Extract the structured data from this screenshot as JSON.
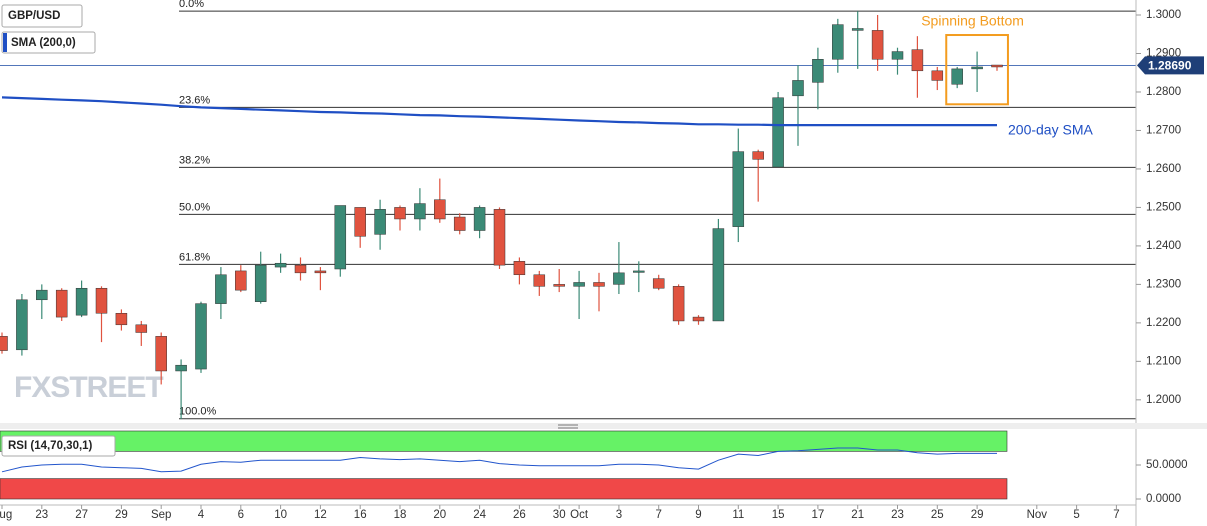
{
  "chart_data": {
    "type": "candlestick",
    "watermark": "FXSTREET",
    "categories": [
      "Aug",
      null,
      "23",
      null,
      "27",
      null,
      "29",
      null,
      "Sep",
      null,
      "4",
      null,
      "6",
      null,
      "10",
      null,
      "12",
      null,
      "16",
      null,
      "18",
      null,
      "20",
      null,
      "24",
      null,
      "26",
      null,
      "30",
      "Oct",
      null,
      "3",
      null,
      "7",
      null,
      "9",
      null,
      "11",
      null,
      "15",
      null,
      "17",
      null,
      "21",
      null,
      "23",
      null,
      "25",
      null,
      "29",
      null,
      null,
      "Nov",
      null,
      "5",
      null,
      "7"
    ],
    "ylim": [
      1.1945,
      1.3039
    ],
    "yticks": [
      {
        "value": 1.2,
        "label": "1.2000"
      },
      {
        "value": 1.21,
        "label": "1.2100"
      },
      {
        "value": 1.22,
        "label": "1.2200"
      },
      {
        "value": 1.23,
        "label": "1.2300"
      },
      {
        "value": 1.24,
        "label": "1.2400"
      },
      {
        "value": 1.25,
        "label": "1.2500"
      },
      {
        "value": 1.26,
        "label": "1.2600"
      },
      {
        "value": 1.27,
        "label": "1.2700"
      },
      {
        "value": 1.28,
        "label": "1.2800"
      },
      {
        "value": 1.29,
        "label": "1.2900"
      },
      {
        "value": 1.3,
        "label": "1.3000"
      }
    ],
    "up_color": "#3b8a76",
    "down_color": "#e0533f",
    "current_price": {
      "value": 1.2869,
      "label": "1.28690",
      "color": "#1f3f78"
    },
    "series": [
      {
        "name": "GBP/USD",
        "open": [
          1.2165,
          1.213,
          1.226,
          1.2285,
          1.222,
          1.229,
          1.2225,
          1.2195,
          1.2165,
          1.2075,
          1.208,
          1.225,
          1.2335,
          1.2255,
          1.2345,
          1.235,
          1.2335,
          1.234,
          1.25,
          1.243,
          1.25,
          1.247,
          1.252,
          1.2475,
          1.244,
          1.2495,
          1.236,
          1.2325,
          1.23,
          1.2295,
          1.2305,
          1.23,
          1.2333,
          1.2315,
          1.2295,
          1.2215,
          1.2205,
          1.245,
          1.2645,
          1.2605,
          1.279,
          1.2825,
          1.2885,
          1.296,
          1.296,
          1.2885,
          1.291,
          1.2855,
          1.282,
          1.286,
          1.287,
          null,
          null,
          null,
          null,
          null,
          null
        ],
        "high": [
          1.2175,
          1.2275,
          1.23,
          1.229,
          1.231,
          1.2295,
          1.2235,
          1.2205,
          1.2175,
          1.2105,
          1.2255,
          1.2345,
          1.235,
          1.2385,
          1.238,
          1.237,
          1.2345,
          1.2505,
          1.25,
          1.252,
          1.2505,
          1.255,
          1.2575,
          1.2485,
          1.2505,
          1.25,
          1.237,
          1.2335,
          1.234,
          1.2335,
          1.233,
          1.241,
          1.236,
          1.2325,
          1.23,
          1.222,
          1.247,
          1.2705,
          1.265,
          1.28,
          1.287,
          1.2915,
          1.299,
          1.301,
          1.3,
          1.2915,
          1.2945,
          1.2865,
          1.2865,
          1.2905,
          1.287,
          null,
          null,
          null,
          null,
          null,
          null
        ],
        "low": [
          1.212,
          1.2115,
          1.221,
          1.2205,
          1.2215,
          1.215,
          1.218,
          1.214,
          1.204,
          1.195,
          1.207,
          1.221,
          1.228,
          1.225,
          1.233,
          1.231,
          1.2285,
          1.232,
          1.2395,
          1.239,
          1.244,
          1.244,
          1.246,
          1.243,
          1.242,
          1.234,
          1.23,
          1.227,
          1.228,
          1.221,
          1.223,
          1.2275,
          1.228,
          1.2285,
          1.2195,
          1.2195,
          1.2205,
          1.241,
          1.2515,
          1.2605,
          1.266,
          1.2755,
          1.285,
          1.286,
          1.2855,
          1.2845,
          1.2785,
          1.2805,
          1.281,
          1.28,
          1.2855,
          null,
          null,
          null,
          null,
          null,
          null
        ],
        "close": [
          1.2128,
          1.226,
          1.2285,
          1.2215,
          1.229,
          1.2225,
          1.2195,
          1.2175,
          1.2075,
          1.209,
          1.225,
          1.2325,
          1.2285,
          1.235,
          1.2355,
          1.233,
          1.233,
          1.2505,
          1.2425,
          1.2495,
          1.247,
          1.251,
          1.247,
          1.244,
          1.25,
          1.235,
          1.2325,
          1.2295,
          1.2295,
          1.2305,
          1.2295,
          1.233,
          1.2335,
          1.229,
          1.2205,
          1.2205,
          1.2445,
          1.2645,
          1.2625,
          1.2785,
          1.283,
          1.2885,
          1.2975,
          1.2965,
          1.2885,
          1.2905,
          1.2855,
          1.283,
          1.286,
          1.2865,
          1.2865,
          null,
          null,
          null,
          null,
          null,
          null
        ]
      },
      {
        "name": "SMA (200,0)",
        "color": "#1f4fc4",
        "values": [
          1.2786,
          1.2784,
          1.2782,
          1.278,
          1.2778,
          1.2776,
          1.2773,
          1.277,
          1.2767,
          1.2763,
          1.276,
          1.2758,
          1.2756,
          1.2754,
          1.2752,
          1.275,
          1.2748,
          1.2747,
          1.2745,
          1.2744,
          1.2742,
          1.274,
          1.2739,
          1.2737,
          1.2736,
          1.2734,
          1.2732,
          1.273,
          1.2728,
          1.2726,
          1.2724,
          1.2722,
          1.2721,
          1.2719,
          1.2718,
          1.2716,
          1.2716,
          1.2715,
          1.2715,
          1.2714,
          1.2714,
          1.2714,
          1.2714,
          1.2714,
          1.2714,
          1.2714,
          1.2714,
          1.2714,
          1.2714,
          1.2714,
          1.2714,
          null,
          null,
          null,
          null,
          null,
          null
        ]
      }
    ],
    "fib_levels": [
      {
        "label": "0.0%",
        "value": 1.301
      },
      {
        "label": "23.6%",
        "value": 1.276
      },
      {
        "label": "38.2%",
        "value": 1.2604
      },
      {
        "label": "50.0%",
        "value": 1.2482
      },
      {
        "label": "61.8%",
        "value": 1.2352
      },
      {
        "label": "100.0%",
        "value": 1.1951
      }
    ],
    "annotations": [
      {
        "text": "200-day SMA",
        "color": "#1f4fc4",
        "value": 1.2712
      },
      {
        "text": "Spinning Bottom",
        "color": "#f39c1f",
        "top": 1.2948,
        "bottom": 1.2768,
        "from": 48,
        "to": 50
      }
    ],
    "rsi": {
      "name": "RSI (14,70,30,1)",
      "color": "#2255cc",
      "ylim": [
        0,
        100
      ],
      "overbought": 70,
      "oversold": 30,
      "upper_color": "#66f266",
      "lower_color": "#f04848",
      "yticks": [
        {
          "value": 0,
          "label": "0.0000"
        },
        {
          "value": 50,
          "label": "50.0000"
        }
      ],
      "values": [
        40,
        47,
        50,
        51,
        51,
        47,
        46,
        45,
        40,
        41,
        51,
        55,
        54,
        57,
        57,
        57,
        57,
        57,
        61,
        59,
        58,
        59,
        57,
        55,
        57,
        52,
        50,
        49,
        49,
        49,
        49,
        51,
        51,
        50,
        46,
        44,
        57,
        66,
        64,
        70,
        71,
        73,
        75,
        75,
        72,
        72,
        68,
        66,
        67,
        67,
        67,
        null,
        null,
        null,
        null,
        null,
        null
      ]
    }
  }
}
